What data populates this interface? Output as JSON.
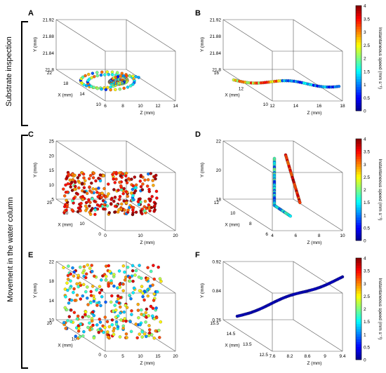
{
  "groups": [
    {
      "label": "Substrate inspection"
    },
    {
      "label": "Movement in the water column"
    }
  ],
  "colorbar": {
    "label": "Instantaneous speed (mm s⁻¹)",
    "ticks": [
      "0",
      "0.5",
      "1",
      "1.5",
      "2",
      "2.5",
      "3",
      "3.5",
      "4"
    ],
    "range": [
      0,
      4
    ],
    "colors": [
      "#00008f",
      "#0000ff",
      "#0080ff",
      "#00ffff",
      "#80ff80",
      "#ffff00",
      "#ff8000",
      "#ff0000",
      "#800000"
    ]
  },
  "chart_data": [
    {
      "panel": "A",
      "type": "scatter3d",
      "ylabel": "Y (mm)",
      "xlabel": "X (mm)",
      "zlabel": "Z (mm)",
      "y_ticks": [
        "21.92",
        "21.88",
        "21.84",
        "21.8"
      ],
      "x_ticks": [
        "22",
        "18",
        "14",
        "10"
      ],
      "z_ticks": [
        "6",
        "8",
        "10",
        "12",
        "14"
      ],
      "color_by": "speed",
      "pattern": "loops"
    },
    {
      "panel": "B",
      "type": "scatter3d",
      "ylabel": "Y (mm)",
      "xlabel": "X (mm)",
      "zlabel": "Z (mm)",
      "y_ticks": [
        "21.92",
        "21.88",
        "21.84",
        "21.8"
      ],
      "x_ticks": [
        "16",
        "12",
        "10"
      ],
      "z_ticks": [
        "12",
        "14",
        "16",
        "18"
      ],
      "color_by": "speed",
      "pattern": "line-flat"
    },
    {
      "panel": "C",
      "type": "scatter3d",
      "ylabel": "Y (mm)",
      "xlabel": "X (mm)",
      "zlabel": "Z (mm)",
      "y_ticks": [
        "25",
        "20",
        "15",
        "10",
        "5"
      ],
      "x_ticks": [
        "25",
        "20",
        "10",
        "0"
      ],
      "z_ticks": [
        "0",
        "10",
        "20"
      ],
      "color_by": "speed",
      "pattern": "dense-fast"
    },
    {
      "panel": "D",
      "type": "scatter3d",
      "ylabel": "Y (mm)",
      "xlabel": "X (mm)",
      "zlabel": "Z (mm)",
      "y_ticks": [
        "22",
        "20",
        "18"
      ],
      "x_ticks": [
        "12",
        "10",
        "8",
        "6"
      ],
      "z_ticks": [
        "4",
        "6",
        "8",
        "10"
      ],
      "color_by": "speed",
      "pattern": "vertical"
    },
    {
      "panel": "E",
      "type": "scatter3d",
      "ylabel": "Y (mm)",
      "xlabel": "X (mm)",
      "zlabel": "Z (mm)",
      "y_ticks": [
        "22",
        "18",
        "14",
        "10"
      ],
      "x_ticks": [
        "20",
        "10",
        "0"
      ],
      "z_ticks": [
        "0",
        "5",
        "10",
        "15",
        "20"
      ],
      "color_by": "speed",
      "pattern": "dense-mixed"
    },
    {
      "panel": "F",
      "type": "scatter3d",
      "ylabel": "Y (mm)",
      "xlabel": "X (mm)",
      "zlabel": "Z (mm)",
      "y_ticks": [
        "0.92",
        "0.84",
        "0.76"
      ],
      "x_ticks": [
        "15.5",
        "14.5",
        "13.5",
        "12.5"
      ],
      "z_ticks": [
        "7.6",
        "8.2",
        "8.6",
        "9",
        "9.4"
      ],
      "color_by": "speed",
      "pattern": "diagonal-slow"
    }
  ]
}
